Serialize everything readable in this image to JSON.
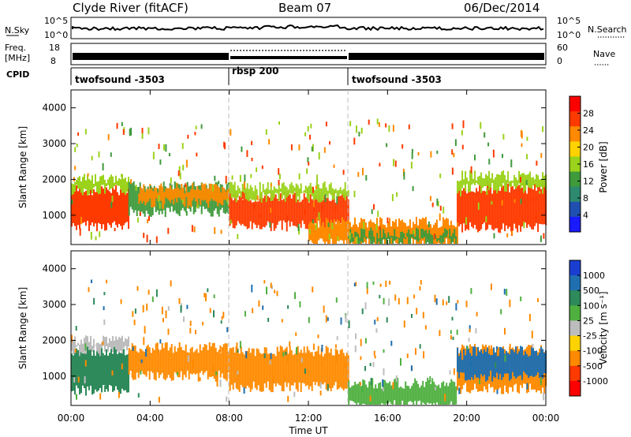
{
  "header": {
    "station": "Clyde River (fitACF)",
    "beam": "Beam 07",
    "date": "06/Dec/2014"
  },
  "status_panel": {
    "nsky_label": "N.Sky",
    "nsky_ticks": [
      "10^5",
      "10^0"
    ],
    "nsearch_label": "N.Search",
    "freq_label_1": "Freq.",
    "freq_label_2": "[MHz]",
    "freq_ticks": [
      "18",
      "8"
    ],
    "nave_ticks": [
      "60",
      "0"
    ],
    "nave_label": "Nave",
    "cpid_label": "CPID",
    "cpid_segments": [
      {
        "label": "twofsound -3503",
        "start_hour": 0,
        "end_hour": 8
      },
      {
        "label": "rbsp 200",
        "start_hour": 8,
        "end_hour": 14
      },
      {
        "label": "twofsound -3503",
        "start_hour": 14,
        "end_hour": 24
      }
    ]
  },
  "axes": {
    "y_label": "Slant Range [km]",
    "y_ticks": [
      1000,
      2000,
      3000,
      4000
    ],
    "y_range": [
      180,
      4500
    ],
    "x_label": "Time UT",
    "x_ticks": [
      "00:00",
      "04:00",
      "08:00",
      "12:00",
      "16:00",
      "20:00",
      "00:00"
    ],
    "x_range_hours": [
      0,
      24
    ]
  },
  "colorbars": {
    "power": {
      "label": "Power [dB]",
      "ticks": [
        "28",
        "24",
        "20",
        "16",
        "12",
        "8",
        "4"
      ],
      "colors": [
        "#ff0000",
        "#ff3a00",
        "#ff8a00",
        "#ffd200",
        "#9bd21c",
        "#3f9a3c",
        "#2e8a6e",
        "#1f4fb0",
        "#1a1aff"
      ]
    },
    "velocity": {
      "label": "Velocity [m s⁻¹]",
      "ticks": [
        "1000",
        "500",
        "100",
        "25",
        "-25",
        "-100",
        "-500",
        "-1000"
      ],
      "colors": [
        "#1a3fd0",
        "#1f6fb0",
        "#2e8a5a",
        "#4fb040",
        "#bdbdbd",
        "#ffd200",
        "#ff8a00",
        "#ff3a00",
        "#ff0000"
      ]
    }
  },
  "chart_data": {
    "type": "heatmap",
    "x_unit": "hours UT",
    "y_unit": "km",
    "regions_power": [
      {
        "t0": 0.0,
        "t1": 2.9,
        "r0": 700,
        "r1": 1700,
        "color": "#ff3a00"
      },
      {
        "t0": 0.0,
        "t1": 2.9,
        "r0": 1700,
        "r1": 2000,
        "color": "#9bd21c"
      },
      {
        "t0": 2.9,
        "t1": 8.0,
        "r0": 1100,
        "r1": 1800,
        "color": "#3f9a3c"
      },
      {
        "t0": 3.4,
        "t1": 8.0,
        "r0": 1350,
        "r1": 1750,
        "color": "#ff8a00"
      },
      {
        "t0": 8.0,
        "t1": 14.0,
        "r0": 700,
        "r1": 1500,
        "color": "#ff3a00"
      },
      {
        "t0": 8.0,
        "t1": 14.0,
        "r0": 1500,
        "r1": 1800,
        "color": "#9bd21c"
      },
      {
        "t0": 12.0,
        "t1": 19.5,
        "r0": 200,
        "r1": 800,
        "color": "#ff8a00"
      },
      {
        "t0": 14.0,
        "t1": 19.5,
        "r0": 250,
        "r1": 500,
        "color": "#3f9a3c"
      },
      {
        "t0": 19.5,
        "t1": 24.0,
        "r0": 650,
        "r1": 1750,
        "color": "#ff3a00"
      },
      {
        "t0": 19.5,
        "t1": 24.0,
        "r0": 1750,
        "r1": 2100,
        "color": "#9bd21c"
      }
    ],
    "regions_velocity": [
      {
        "t0": 0.0,
        "t1": 2.9,
        "r0": 600,
        "r1": 1700,
        "color": "#2e8a5a"
      },
      {
        "t0": 0.0,
        "t1": 2.9,
        "r0": 1700,
        "r1": 2000,
        "color": "#bdbdbd"
      },
      {
        "t0": 2.9,
        "t1": 8.0,
        "r0": 1000,
        "r1": 1800,
        "color": "#ff8a00"
      },
      {
        "t0": 8.0,
        "t1": 14.0,
        "r0": 700,
        "r1": 1700,
        "color": "#ff8a00"
      },
      {
        "t0": 14.0,
        "t1": 19.5,
        "r0": 200,
        "r1": 800,
        "color": "#4fb040"
      },
      {
        "t0": 19.5,
        "t1": 24.0,
        "r0": 650,
        "r1": 1750,
        "color": "#ff8a00"
      },
      {
        "t0": 19.5,
        "t1": 24.0,
        "r0": 1000,
        "r1": 1700,
        "color": "#1f6fb0"
      }
    ]
  }
}
